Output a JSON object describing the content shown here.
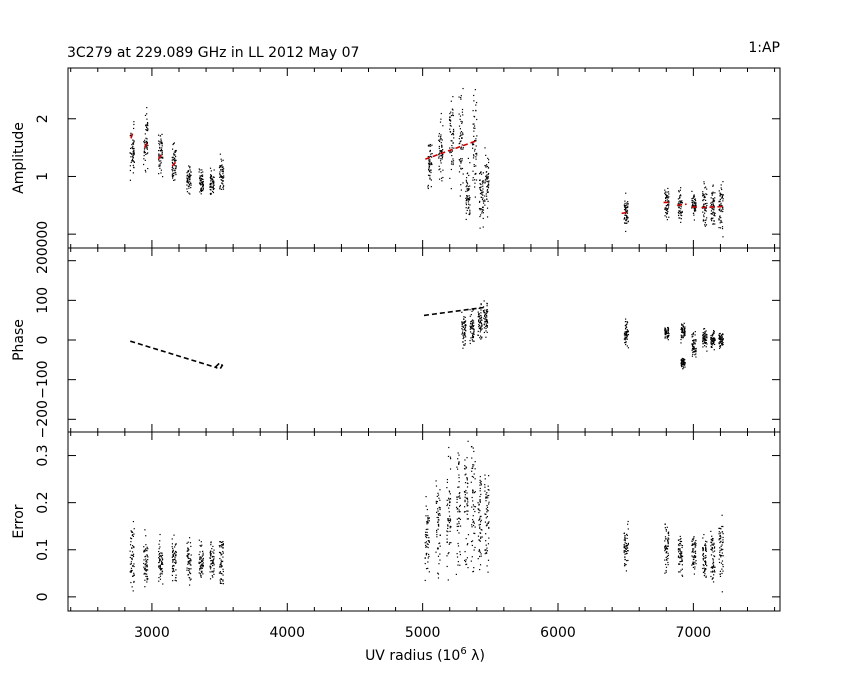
{
  "title": "3C279 at 229.089 GHz in LL  2012 May 07",
  "corner_label": "1:AP",
  "chart_data": {
    "type": "scatter",
    "xlabel": "UV radius  (10",
    "xlabel_sup": "6",
    "xlabel_unit": " λ)",
    "xlim": [
      2380,
      7640
    ],
    "xticks": [
      3000,
      4000,
      5000,
      6000,
      7000
    ],
    "xtick_labels": [
      "3000",
      "4000",
      "5000",
      "6000",
      "7000"
    ],
    "panels": [
      {
        "id": "amplitude",
        "ylabel": "Amplitude",
        "ylim": [
          -0.24,
          2.88
        ],
        "yticks": [
          0,
          1,
          2
        ],
        "ytick_labels": [
          "000",
          "1",
          "2"
        ],
        "clusters": [
          {
            "x": 2850,
            "y": 1.45,
            "spread": 0.3
          },
          {
            "x": 2950,
            "y": 1.65,
            "spread": 0.35
          },
          {
            "x": 3060,
            "y": 1.4,
            "spread": 0.25
          },
          {
            "x": 3160,
            "y": 1.25,
            "spread": 0.22
          },
          {
            "x": 3270,
            "y": 0.95,
            "spread": 0.15
          },
          {
            "x": 3360,
            "y": 0.9,
            "spread": 0.15
          },
          {
            "x": 3440,
            "y": 0.9,
            "spread": 0.15
          },
          {
            "x": 3510,
            "y": 1.0,
            "spread": 0.25
          },
          {
            "x": 5050,
            "y": 1.2,
            "spread": 0.3
          },
          {
            "x": 5130,
            "y": 1.5,
            "spread": 0.4
          },
          {
            "x": 5210,
            "y": 1.6,
            "spread": 0.6
          },
          {
            "x": 5280,
            "y": 1.7,
            "spread": 0.7
          },
          {
            "x": 5330,
            "y": 0.7,
            "spread": 0.35
          },
          {
            "x": 5380,
            "y": 1.6,
            "spread": 0.6
          },
          {
            "x": 5430,
            "y": 0.7,
            "spread": 0.35
          },
          {
            "x": 5470,
            "y": 0.9,
            "spread": 0.45
          },
          {
            "x": 6500,
            "y": 0.38,
            "spread": 0.2
          },
          {
            "x": 6800,
            "y": 0.55,
            "spread": 0.2
          },
          {
            "x": 6900,
            "y": 0.5,
            "spread": 0.2
          },
          {
            "x": 7000,
            "y": 0.5,
            "spread": 0.18
          },
          {
            "x": 7080,
            "y": 0.5,
            "spread": 0.25
          },
          {
            "x": 7140,
            "y": 0.5,
            "spread": 0.25
          },
          {
            "x": 7200,
            "y": 0.5,
            "spread": 0.3
          }
        ],
        "model": [
          {
            "x": [
              2845,
              2860
            ],
            "y": [
              1.66,
              1.76
            ]
          },
          {
            "x": [
              2945,
              2965
            ],
            "y": [
              1.5,
              1.58
            ]
          },
          {
            "x": [
              3050,
              3075
            ],
            "y": [
              1.3,
              1.4
            ]
          },
          {
            "x": [
              3150,
              3180
            ],
            "y": [
              1.18,
              1.26
            ]
          },
          {
            "x": [
              5020,
              5400
            ],
            "y": [
              1.3,
              1.62
            ]
          },
          {
            "x": [
              6470,
              6520
            ],
            "y": [
              0.36,
              0.38
            ]
          },
          {
            "x": [
              6780,
              6830
            ],
            "y": [
              0.55,
              0.55
            ]
          },
          {
            "x": [
              6880,
              6950
            ],
            "y": [
              0.5,
              0.52
            ]
          },
          {
            "x": [
              6990,
              7030
            ],
            "y": [
              0.47,
              0.47
            ]
          },
          {
            "x": [
              7060,
              7220
            ],
            "y": [
              0.46,
              0.48
            ]
          }
        ]
      },
      {
        "id": "phase",
        "ylabel": "Phase",
        "ylim": [
          -232,
          232
        ],
        "yticks": [
          -200,
          -100,
          0,
          100,
          200
        ],
        "ytick_labels": [
          "−200",
          "−100",
          "0",
          "100",
          "200"
        ],
        "clusters": [
          {
            "x": 5300,
            "y": 25,
            "spread": 30
          },
          {
            "x": 5360,
            "y": 30,
            "spread": 30
          },
          {
            "x": 5420,
            "y": 50,
            "spread": 35
          },
          {
            "x": 5460,
            "y": 60,
            "spread": 35
          },
          {
            "x": 6500,
            "y": 18,
            "spread": 25
          },
          {
            "x": 6800,
            "y": 22,
            "spread": 12
          },
          {
            "x": 6920,
            "y": 20,
            "spread": 18
          },
          {
            "x": 6920,
            "y": -55,
            "spread": 10
          },
          {
            "x": 7000,
            "y": -10,
            "spread": 25
          },
          {
            "x": 7080,
            "y": 5,
            "spread": 18
          },
          {
            "x": 7140,
            "y": 0,
            "spread": 18
          },
          {
            "x": 7200,
            "y": 0,
            "spread": 15
          }
        ],
        "model": [
          {
            "x": [
              2840,
              3480
            ],
            "y": [
              -3,
              -70
            ]
          },
          {
            "x": [
              3470,
              3500,
              3520,
              3505,
              3475
            ],
            "y": [
              -68,
              -58,
              -64,
              -72,
              -70
            ]
          },
          {
            "x": [
              5010,
              5450
            ],
            "y": [
              62,
              82
            ]
          }
        ]
      },
      {
        "id": "error",
        "ylabel": "Error",
        "ylim": [
          -0.03,
          0.35
        ],
        "yticks": [
          0,
          0.1,
          0.2,
          0.3
        ],
        "ytick_labels": [
          "0",
          "0.1",
          "0.2",
          "0.3"
        ],
        "clusters": [
          {
            "x": 2850,
            "y": 0.09,
            "spread": 0.05
          },
          {
            "x": 2950,
            "y": 0.08,
            "spread": 0.04
          },
          {
            "x": 3060,
            "y": 0.08,
            "spread": 0.035
          },
          {
            "x": 3160,
            "y": 0.08,
            "spread": 0.035
          },
          {
            "x": 3270,
            "y": 0.075,
            "spread": 0.03
          },
          {
            "x": 3360,
            "y": 0.075,
            "spread": 0.03
          },
          {
            "x": 3440,
            "y": 0.075,
            "spread": 0.03
          },
          {
            "x": 3510,
            "y": 0.08,
            "spread": 0.04
          },
          {
            "x": 5030,
            "y": 0.12,
            "spread": 0.06
          },
          {
            "x": 5110,
            "y": 0.15,
            "spread": 0.07
          },
          {
            "x": 5190,
            "y": 0.18,
            "spread": 0.09
          },
          {
            "x": 5260,
            "y": 0.19,
            "spread": 0.1
          },
          {
            "x": 5320,
            "y": 0.2,
            "spread": 0.1
          },
          {
            "x": 5370,
            "y": 0.2,
            "spread": 0.1
          },
          {
            "x": 5420,
            "y": 0.18,
            "spread": 0.08
          },
          {
            "x": 5470,
            "y": 0.18,
            "spread": 0.09
          },
          {
            "x": 6500,
            "y": 0.11,
            "spread": 0.04
          },
          {
            "x": 6800,
            "y": 0.1,
            "spread": 0.035
          },
          {
            "x": 6900,
            "y": 0.09,
            "spread": 0.035
          },
          {
            "x": 7000,
            "y": 0.09,
            "spread": 0.035
          },
          {
            "x": 7080,
            "y": 0.09,
            "spread": 0.035
          },
          {
            "x": 7140,
            "y": 0.09,
            "spread": 0.04
          },
          {
            "x": 7200,
            "y": 0.1,
            "spread": 0.05
          }
        ],
        "model": []
      }
    ],
    "colors": {
      "points": "#000000",
      "model": "#cc0000",
      "axes": "#000000"
    },
    "grid": false,
    "legend": "none"
  }
}
